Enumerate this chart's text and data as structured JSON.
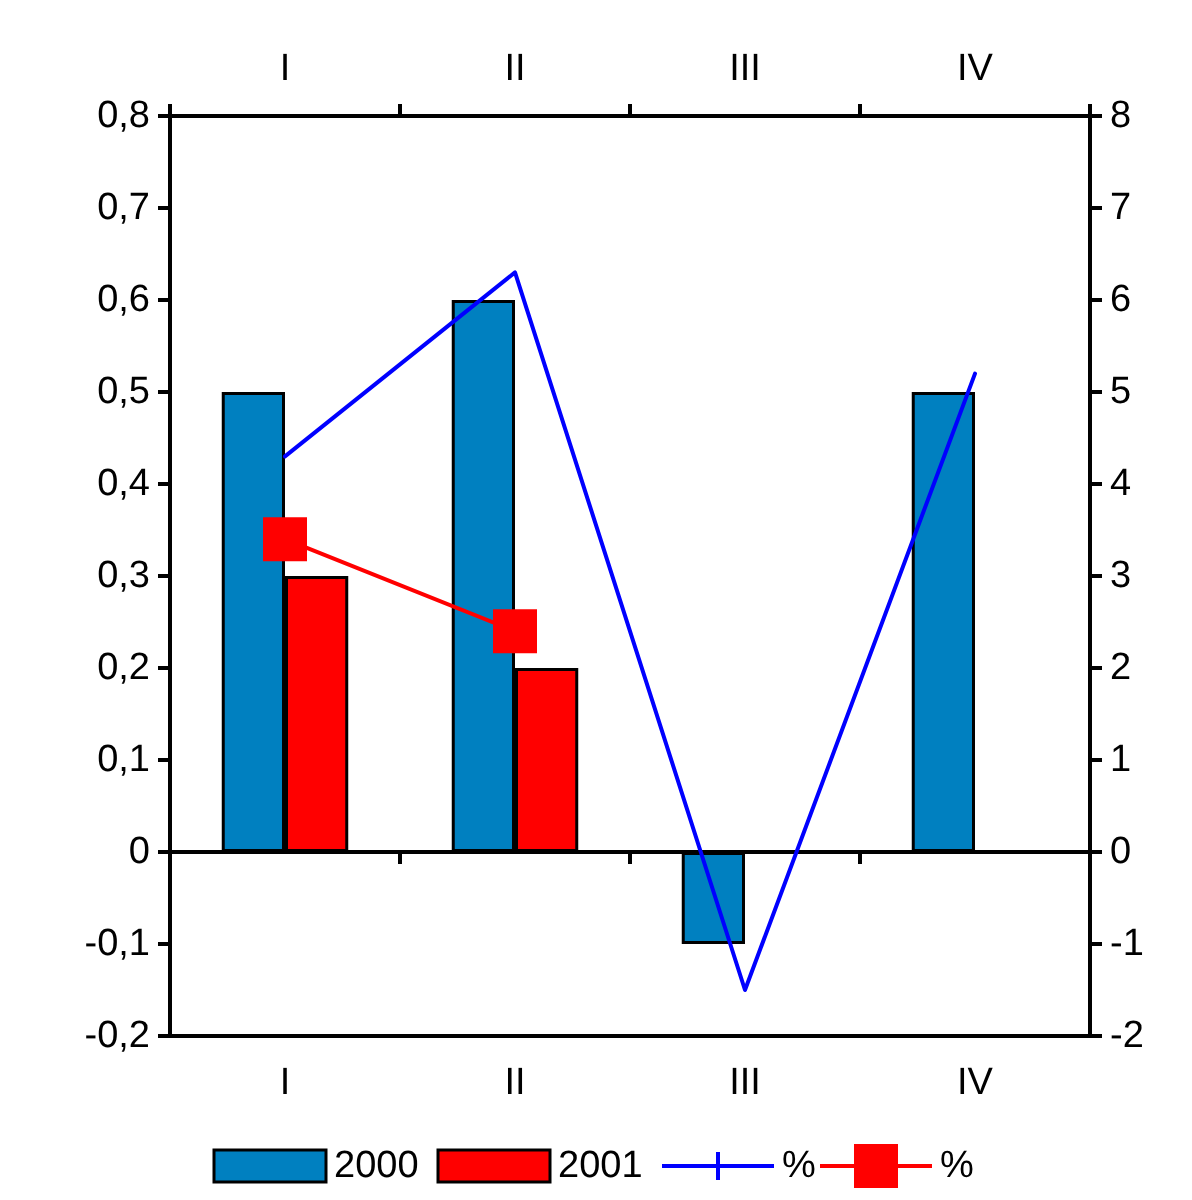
{
  "chart_data": {
    "type": "bar",
    "categories": [
      "I",
      "II",
      "III",
      "IV"
    ],
    "series": [
      {
        "name": "2000",
        "color": "#0080c0",
        "values": [
          0.5,
          0.6,
          -0.1,
          0.5
        ]
      },
      {
        "name": "2001",
        "color": "#ff0000",
        "values": [
          0.3,
          0.2,
          null,
          null
        ]
      },
      {
        "name": "%",
        "type": "line",
        "axis": "y2",
        "color": "#0000ff",
        "marker": "none",
        "values": [
          4.3,
          6.3,
          -1.5,
          5.2
        ]
      },
      {
        "name": "%",
        "type": "line",
        "axis": "y2",
        "color": "#ff0000",
        "marker": "square",
        "values": [
          3.4,
          2.4,
          null,
          null
        ]
      }
    ],
    "ylim": [
      -0.2,
      0.8
    ],
    "yticks": [
      {
        "value": -0.2,
        "label": "-0,2"
      },
      {
        "value": -0.1,
        "label": "-0,1"
      },
      {
        "value": 0,
        "label": "0"
      },
      {
        "value": 0.1,
        "label": "0,1"
      },
      {
        "value": 0.2,
        "label": "0,2"
      },
      {
        "value": 0.3,
        "label": "0,3"
      },
      {
        "value": 0.4,
        "label": "0,4"
      },
      {
        "value": 0.5,
        "label": "0,5"
      },
      {
        "value": 0.6,
        "label": "0,6"
      },
      {
        "value": 0.7,
        "label": "0,7"
      },
      {
        "value": 0.8,
        "label": "0,8"
      }
    ],
    "y2lim": [
      -2,
      8
    ],
    "y2ticks": [
      -2,
      -1,
      0,
      1,
      2,
      3,
      4,
      5,
      6,
      7,
      8
    ],
    "legend": "bottom"
  }
}
